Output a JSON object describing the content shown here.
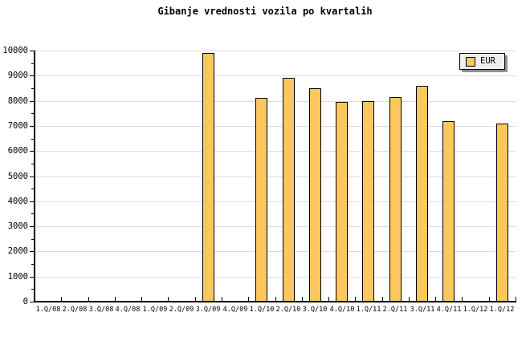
{
  "title": "Gibanje vrednosti vozila po kvartalih",
  "legend": {
    "label": "EUR"
  },
  "colors": {
    "bar_fill": "#FBC75F",
    "bar_border": "#000000",
    "grid": "#DCDCDC",
    "axis": "#000000",
    "legend_bg": "#EEEEEE",
    "legend_shadow": "#909090",
    "background": "#FFFFFF"
  },
  "chart_data": {
    "type": "bar",
    "title": "Gibanje vrednosti vozila po kvartalih",
    "categories": [
      "1.Q/08",
      "2.Q/08",
      "3.Q/08",
      "4.Q/08",
      "1.Q/09",
      "2.Q/09",
      "3.Q/09",
      "4.Q/09",
      "1.Q/10",
      "2.Q/10",
      "3.Q/10",
      "4.Q/10",
      "1.Q/11",
      "2.Q/11",
      "3.Q/11",
      "4.Q/11",
      "1.Q/12",
      "1.Q/12"
    ],
    "series": [
      {
        "name": "EUR",
        "values": [
          null,
          null,
          null,
          null,
          null,
          null,
          9900,
          null,
          8100,
          8900,
          8500,
          7950,
          8000,
          8150,
          8600,
          7200,
          null,
          7100
        ]
      }
    ],
    "xlabel": "",
    "ylabel": "",
    "ylim": [
      0,
      10000
    ],
    "y_tick_step": 1000,
    "y_minor_tick_step": 500,
    "y_tick_labels": [
      "0",
      "1000",
      "2000",
      "3000",
      "4000",
      "5000",
      "6000",
      "7000",
      "8000",
      "9000",
      "10000"
    ],
    "grid": true,
    "legend_position": "top-right"
  }
}
